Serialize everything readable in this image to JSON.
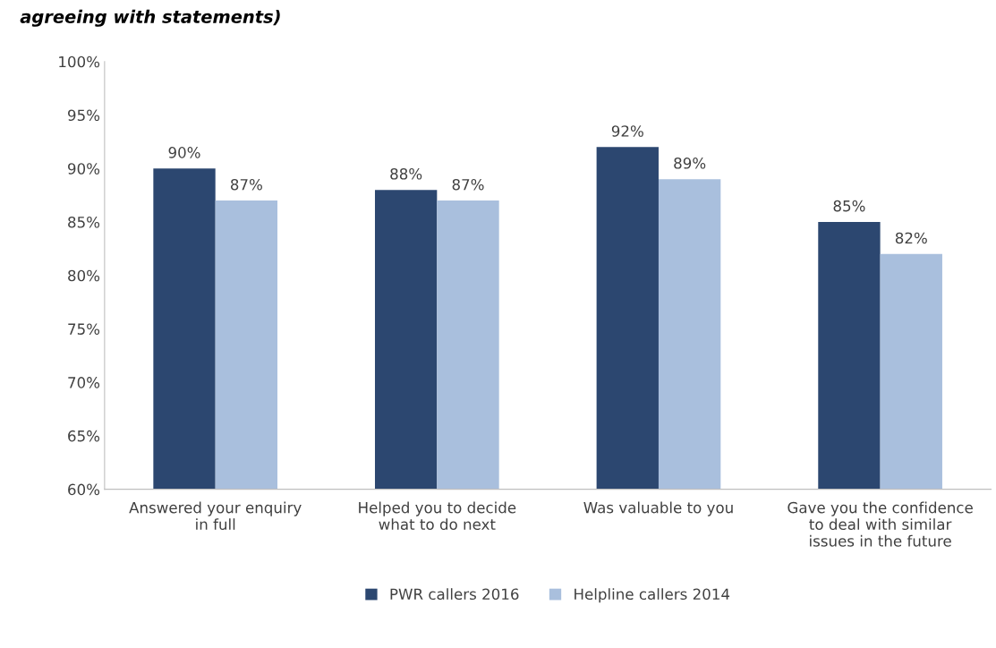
{
  "chart_data": {
    "type": "bar",
    "title": "agreeing with statements)",
    "categories": [
      "Answered your enquiry in full",
      "Helped you to decide what to do next",
      "Was valuable to you",
      "Gave you the confidence to deal with similar issues in the future"
    ],
    "series": [
      {
        "name": "PWR callers 2016",
        "color": "#2c4770",
        "values": [
          90,
          88,
          92,
          85
        ],
        "value_labels": [
          "90%",
          "88%",
          "92%",
          "85%"
        ]
      },
      {
        "name": "Helpline callers 2014",
        "color": "#a9bfdd",
        "values": [
          87,
          87,
          89,
          82
        ],
        "value_labels": [
          "87%",
          "87%",
          "89%",
          "82%"
        ]
      }
    ],
    "ylim": [
      60,
      100
    ],
    "yticks": [
      {
        "value": 60,
        "label": "60%"
      },
      {
        "value": 65,
        "label": "65%"
      },
      {
        "value": 70,
        "label": "70%"
      },
      {
        "value": 75,
        "label": "75%"
      },
      {
        "value": 80,
        "label": "80%"
      },
      {
        "value": 85,
        "label": "85%"
      },
      {
        "value": 90,
        "label": "90%"
      },
      {
        "value": 95,
        "label": "95%"
      },
      {
        "value": 100,
        "label": "100%"
      }
    ],
    "grid": false,
    "legend": "bottom"
  }
}
